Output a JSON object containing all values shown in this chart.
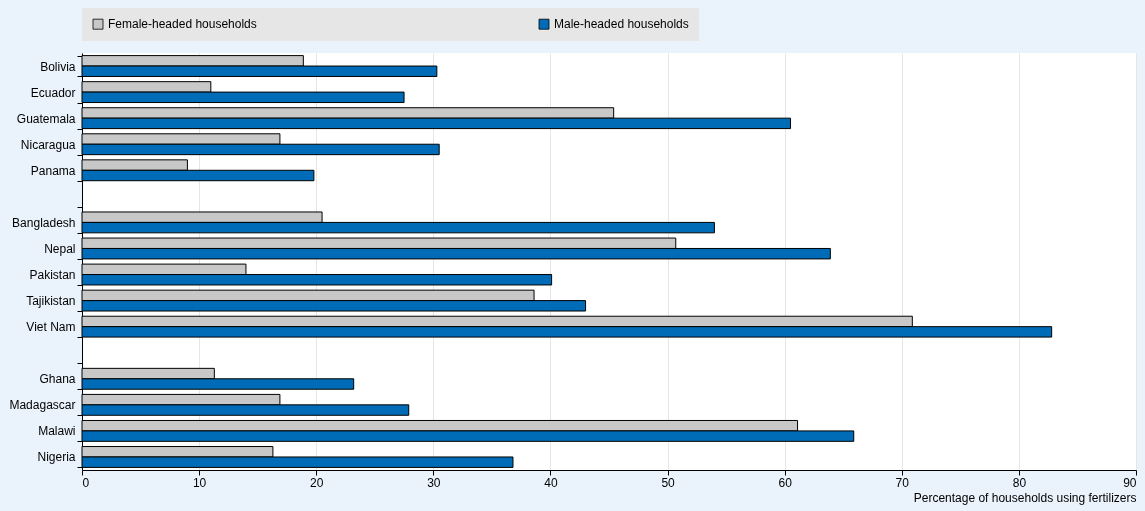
{
  "chart_data": {
    "type": "bar",
    "orientation": "horizontal",
    "xlabel": "Percentage of households using fertilizers",
    "categories": [
      "Bolivia",
      "Ecuador",
      "Guatemala",
      "Nicaragua",
      "Panama",
      null,
      "Bangladesh",
      "Nepal",
      "Pakistan",
      "Tajikistan",
      "Viet Nam",
      null,
      "Ghana",
      "Madagascar",
      "Malawi",
      "Nigeria"
    ],
    "series": [
      {
        "name": "Female-headed households",
        "color": "#c8c8c8",
        "values": [
          18.9,
          11.0,
          45.4,
          16.9,
          9.0,
          null,
          20.5,
          50.7,
          14.0,
          38.6,
          70.9,
          null,
          11.3,
          16.9,
          61.1,
          16.3
        ]
      },
      {
        "name": "Male-headed households",
        "color": "#006bb6",
        "values": [
          30.3,
          27.5,
          60.5,
          30.5,
          19.8,
          null,
          54.0,
          63.9,
          40.1,
          43.0,
          82.8,
          null,
          23.2,
          27.9,
          65.9,
          36.8
        ]
      }
    ],
    "xlim": [
      0,
      90
    ],
    "xticks": [
      0,
      10,
      20,
      30,
      40,
      50,
      60,
      70,
      80,
      90
    ],
    "grid": "x",
    "legend": "top"
  }
}
